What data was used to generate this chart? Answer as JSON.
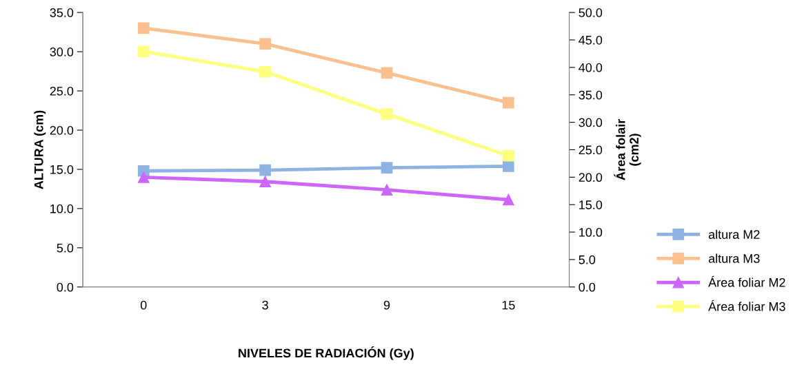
{
  "chart_data": {
    "type": "line",
    "xlabel": "NIVELES DE RADIACIÓN (Gy)",
    "ylabel": "ALTURA (cm)",
    "y2label": "Área folair\n(cm2)",
    "categories": [
      "0",
      "3",
      "9",
      "15"
    ],
    "series": [
      {
        "name": "altura M2",
        "color": "#8db3e2",
        "marker": "square",
        "values": [
          14.8,
          14.9,
          15.2,
          15.4
        ]
      },
      {
        "name": "altura M3",
        "color": "#fac090",
        "marker": "square",
        "values": [
          33.0,
          31.0,
          27.3,
          23.5
        ]
      },
      {
        "name": "Área foliar M2",
        "color": "#cc66ff",
        "marker": "triangle",
        "axis": "y2",
        "values": [
          20.0,
          19.2,
          17.7,
          15.9
        ]
      },
      {
        "name": "Área foliar M3",
        "color": "#ffff80",
        "marker": "square",
        "axis": "y2",
        "values": [
          42.9,
          39.2,
          31.5,
          23.9
        ]
      }
    ],
    "ylim": [
      0,
      35
    ],
    "yticks": [
      {
        "value": 0,
        "label": "0.0"
      },
      {
        "value": 5,
        "label": "5.0"
      },
      {
        "value": 10,
        "label": "10.0"
      },
      {
        "value": 15,
        "label": "15.0"
      },
      {
        "value": 20,
        "label": "20.0"
      },
      {
        "value": 25,
        "label": "25.0"
      },
      {
        "value": 30,
        "label": "30.0"
      },
      {
        "value": 35,
        "label": "35.0"
      }
    ],
    "y2lim": [
      0,
      50
    ],
    "y2ticks": [
      {
        "value": 0,
        "label": "0.0"
      },
      {
        "value": 5,
        "label": "5.0"
      },
      {
        "value": 10,
        "label": "10.0"
      },
      {
        "value": 15,
        "label": "15.0"
      },
      {
        "value": 20,
        "label": "20.0"
      },
      {
        "value": 25,
        "label": "25.0"
      },
      {
        "value": 30,
        "label": "30.0"
      },
      {
        "value": 35,
        "label": "35.0"
      },
      {
        "value": 40,
        "label": "40.0"
      },
      {
        "value": 45,
        "label": "45.0"
      },
      {
        "value": 50,
        "label": "50.0"
      }
    ],
    "grid": false,
    "legend": "right",
    "line_style": "solid"
  }
}
